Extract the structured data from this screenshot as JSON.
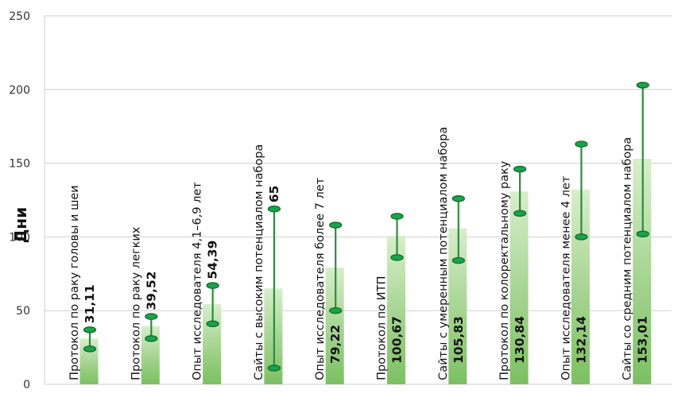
{
  "chart_data": {
    "type": "bar",
    "ylabel": "Дни",
    "ylim": [
      0,
      250
    ],
    "yticks": [
      0,
      50,
      100,
      150,
      200,
      250
    ],
    "grid": true,
    "categories": [
      "Протокол по раку головы и шеи",
      "Протокол по раку легких",
      "Опыт исследователя 4,1–6,9 лет",
      "Сайты с высоким потенциалом набора",
      "Опыт исследователя более 7 лет",
      "Протокол по ИТП",
      "Сайты с умеренным потенциалом набора",
      "Протокол по колоректальному раку",
      "Опыт исследователя менее 4 лет",
      "Сайты со средним потенциалом набора"
    ],
    "value_labels": [
      "31,11",
      "39,52",
      "54,39",
      "65",
      "79,22",
      "100,67",
      "105,83",
      "130,84",
      "132,14",
      "153,01"
    ],
    "values": [
      31.11,
      39.52,
      54.39,
      65,
      79.22,
      100.67,
      105.83,
      130.84,
      132.14,
      153.01
    ],
    "ranges": [
      [
        24,
        37
      ],
      [
        31,
        46
      ],
      [
        41,
        67
      ],
      [
        11,
        119
      ],
      [
        50,
        108
      ],
      [
        86,
        114
      ],
      [
        84,
        126
      ],
      [
        116,
        146
      ],
      [
        100,
        163
      ],
      [
        102,
        203
      ]
    ],
    "colors": {
      "bar": "#8fcb78",
      "error_bar": "#2e8b3d",
      "cap": "#1ba34a",
      "grid": "#cfcfcf"
    }
  }
}
